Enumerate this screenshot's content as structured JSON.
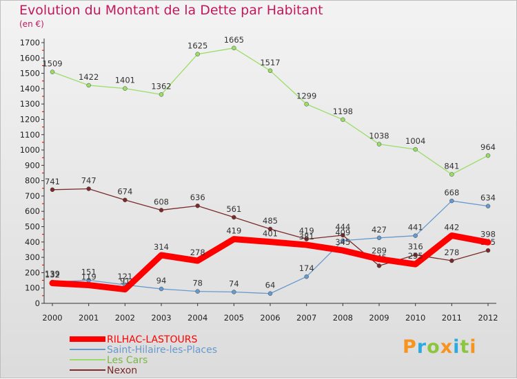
{
  "chart_data": {
    "type": "line",
    "title": "Evolution du Montant de la Dette par Habitant",
    "unit_label": "(en €)",
    "x": [
      "2000",
      "2001",
      "2002",
      "2003",
      "2004",
      "2005",
      "2006",
      "2007",
      "2008",
      "2009",
      "2010",
      "2011",
      "2012"
    ],
    "ylim": [
      0,
      1700
    ],
    "yticks": [
      0,
      100,
      200,
      300,
      400,
      500,
      600,
      700,
      800,
      900,
      1000,
      1100,
      1200,
      1300,
      1400,
      1500,
      1600,
      1700
    ],
    "grid": false,
    "legend_position": "bottom-left",
    "series": [
      {
        "name": "RILHAC-LASTOURS",
        "color": "#ff0000",
        "values": [
          132,
          119,
          91,
          314,
          278,
          419,
          401,
          381,
          345,
          289,
          255,
          442,
          398
        ]
      },
      {
        "name": "Saint-Hilaire-les-Places",
        "color": "#6699cc",
        "values": [
          139,
          151,
          121,
          94,
          78,
          74,
          64,
          174,
          409,
          427,
          441,
          668,
          634
        ]
      },
      {
        "name": "Les Cars",
        "color": "#99dd66",
        "values": [
          1509,
          1422,
          1401,
          1362,
          1625,
          1665,
          1517,
          1299,
          1198,
          1038,
          1004,
          841,
          964
        ]
      },
      {
        "name": "Nexon",
        "color": "#7a2a2a",
        "values": [
          741,
          747,
          674,
          608,
          636,
          561,
          485,
          419,
          444,
          245,
          316,
          278,
          345
        ]
      }
    ]
  },
  "logo": {
    "text": "Proxiti"
  }
}
